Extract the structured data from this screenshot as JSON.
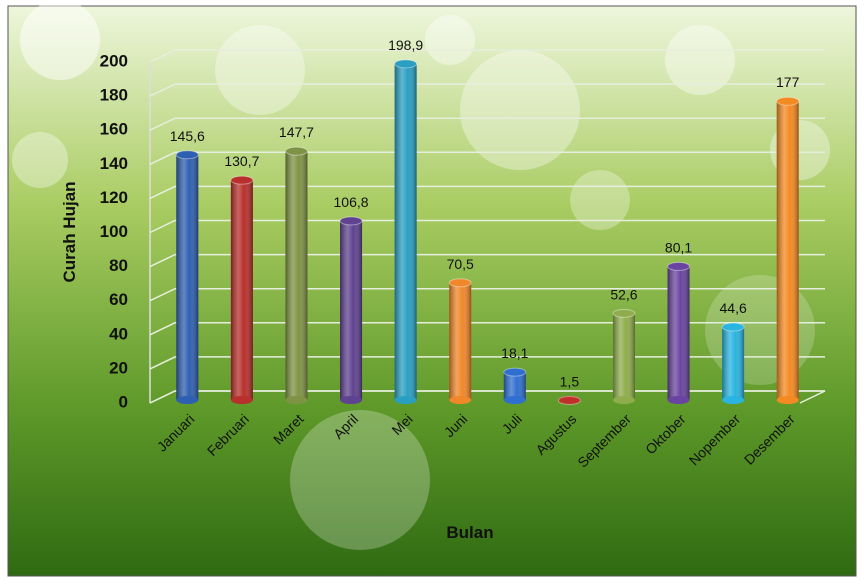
{
  "chart_data": {
    "type": "bar3d",
    "categories": [
      "Januari",
      "Februari",
      "Maret",
      "April",
      "Mei",
      "Juni",
      "Juli",
      "Agustus",
      "September",
      "Oktober",
      "Nopember",
      "Desember"
    ],
    "values": [
      145.6,
      130.7,
      147.7,
      106.8,
      198.9,
      70.5,
      18.1,
      1.5,
      52.6,
      80.1,
      44.6,
      177
    ],
    "value_labels": [
      "145,6",
      "130,7",
      "147,7",
      "106,8",
      "198,9",
      "70,5",
      "18,1",
      "1,5",
      "52,6",
      "80,1",
      "44,6",
      "177"
    ],
    "colors": [
      "#2f5fb0",
      "#b8302c",
      "#7f9344",
      "#5f4290",
      "#2a9fc2",
      "#f0872a",
      "#2f6fd0",
      "#c0302a",
      "#8fad4c",
      "#6a44a0",
      "#2ab4e0",
      "#f48a22"
    ],
    "ylim": [
      0,
      200
    ],
    "yticks": [
      0,
      20,
      40,
      60,
      80,
      100,
      120,
      140,
      160,
      180,
      200
    ],
    "grid": true,
    "ylabel": "Curah Hujan",
    "xlabel": "Bulan"
  }
}
